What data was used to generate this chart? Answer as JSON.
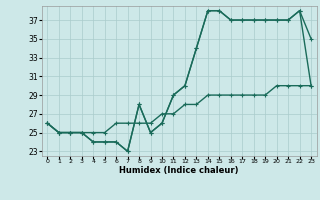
{
  "xlabel": "Humidex (Indice chaleur)",
  "x": [
    0,
    1,
    2,
    3,
    4,
    5,
    6,
    7,
    8,
    9,
    10,
    11,
    12,
    13,
    14,
    15,
    16,
    17,
    18,
    19,
    20,
    21,
    22,
    23
  ],
  "line1": [
    26,
    25,
    25,
    25,
    24,
    24,
    24,
    23,
    28,
    25,
    26,
    29,
    30,
    34,
    38,
    38,
    37,
    37,
    37,
    37,
    37,
    37,
    38,
    35
  ],
  "line2": [
    26,
    25,
    25,
    25,
    24,
    24,
    24,
    23,
    28,
    25,
    26,
    29,
    30,
    34,
    38,
    38,
    37,
    37,
    37,
    37,
    37,
    37,
    38,
    30
  ],
  "line3": [
    26,
    25,
    25,
    25,
    25,
    25,
    26,
    26,
    26,
    26,
    27,
    27,
    28,
    28,
    29,
    29,
    29,
    29,
    29,
    29,
    30,
    30,
    30,
    30
  ],
  "ylim": [
    22.5,
    38.5
  ],
  "yticks": [
    23,
    25,
    27,
    29,
    31,
    33,
    35,
    37
  ],
  "background_color": "#cde8e8",
  "grid_color": "#aacccc",
  "line_color": "#1a6b5a",
  "markersize": 3,
  "linewidth": 1.0
}
